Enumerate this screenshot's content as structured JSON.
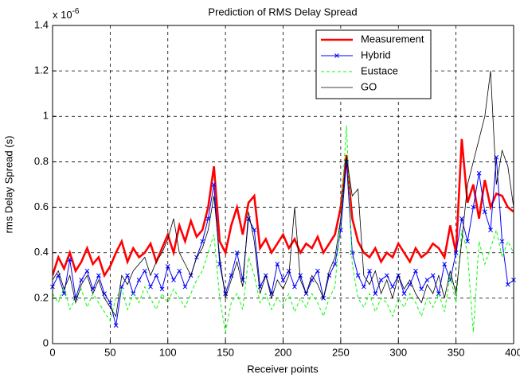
{
  "chart_data": {
    "type": "line",
    "title": "Prediction of RMS Delay Spread",
    "x_label": "Receiver points",
    "y_label": "rms Delay Spread (s)",
    "multiplier": {
      "base": "x 10",
      "exponent": "-6"
    },
    "xlim": [
      0,
      400
    ],
    "xticks": [
      0,
      50,
      100,
      150,
      200,
      250,
      300,
      350,
      400
    ],
    "ylim": [
      0,
      1.4
    ],
    "yticks": [
      0,
      0.2,
      0.4,
      0.6,
      0.8,
      1,
      1.2,
      1.4
    ],
    "grid": true,
    "legend_position": "upper right",
    "x": [
      0,
      5,
      10,
      15,
      20,
      25,
      30,
      35,
      40,
      45,
      50,
      55,
      60,
      65,
      70,
      75,
      80,
      85,
      90,
      95,
      100,
      105,
      110,
      115,
      120,
      125,
      130,
      135,
      140,
      145,
      150,
      155,
      160,
      165,
      170,
      175,
      180,
      185,
      190,
      195,
      200,
      205,
      210,
      215,
      220,
      225,
      230,
      235,
      240,
      245,
      250,
      255,
      260,
      265,
      270,
      275,
      280,
      285,
      290,
      295,
      300,
      305,
      310,
      315,
      320,
      325,
      330,
      335,
      340,
      345,
      350,
      355,
      360,
      365,
      370,
      375,
      380,
      385,
      390,
      395,
      400
    ],
    "series": [
      {
        "name": "Measurement",
        "color": "#ff0000",
        "values": [
          0.3,
          0.38,
          0.33,
          0.4,
          0.32,
          0.36,
          0.42,
          0.35,
          0.38,
          0.3,
          0.34,
          0.4,
          0.45,
          0.36,
          0.42,
          0.38,
          0.4,
          0.44,
          0.36,
          0.42,
          0.48,
          0.4,
          0.52,
          0.45,
          0.54,
          0.47,
          0.5,
          0.6,
          0.78,
          0.45,
          0.4,
          0.52,
          0.6,
          0.48,
          0.62,
          0.65,
          0.42,
          0.46,
          0.4,
          0.44,
          0.48,
          0.42,
          0.46,
          0.4,
          0.44,
          0.42,
          0.47,
          0.4,
          0.44,
          0.48,
          0.6,
          0.83,
          0.55,
          0.45,
          0.4,
          0.38,
          0.42,
          0.36,
          0.4,
          0.38,
          0.44,
          0.4,
          0.36,
          0.42,
          0.38,
          0.4,
          0.44,
          0.42,
          0.38,
          0.52,
          0.4,
          0.9,
          0.62,
          0.7,
          0.55,
          0.72,
          0.6,
          0.66,
          0.65,
          0.6,
          0.58
        ]
      },
      {
        "name": "Hybrid",
        "color": "#0000ff",
        "values": [
          0.25,
          0.3,
          0.22,
          0.37,
          0.2,
          0.28,
          0.32,
          0.24,
          0.3,
          0.22,
          0.18,
          0.08,
          0.25,
          0.3,
          0.22,
          0.28,
          0.32,
          0.25,
          0.3,
          0.24,
          0.34,
          0.28,
          0.32,
          0.25,
          0.3,
          0.38,
          0.45,
          0.55,
          0.7,
          0.35,
          0.22,
          0.3,
          0.4,
          0.28,
          0.55,
          0.5,
          0.25,
          0.3,
          0.22,
          0.35,
          0.28,
          0.32,
          0.25,
          0.3,
          0.22,
          0.28,
          0.32,
          0.2,
          0.3,
          0.35,
          0.5,
          0.8,
          0.4,
          0.3,
          0.25,
          0.32,
          0.22,
          0.28,
          0.3,
          0.25,
          0.3,
          0.22,
          0.26,
          0.32,
          0.24,
          0.28,
          0.3,
          0.22,
          0.35,
          0.28,
          0.4,
          0.55,
          0.45,
          0.6,
          0.75,
          0.58,
          0.5,
          0.82,
          0.45,
          0.26,
          0.28
        ]
      },
      {
        "name": "Eustace",
        "color": "#00ff00",
        "values": [
          0.22,
          0.18,
          0.25,
          0.15,
          0.2,
          0.24,
          0.16,
          0.22,
          0.18,
          0.14,
          0.1,
          0.2,
          0.24,
          0.15,
          0.22,
          0.18,
          0.25,
          0.2,
          0.15,
          0.22,
          0.18,
          0.24,
          0.2,
          0.16,
          0.22,
          0.28,
          0.32,
          0.4,
          0.48,
          0.2,
          0.05,
          0.18,
          0.22,
          0.15,
          0.38,
          0.3,
          0.18,
          0.22,
          0.15,
          0.2,
          0.17,
          0.22,
          0.14,
          0.2,
          0.16,
          0.22,
          0.18,
          0.12,
          0.2,
          0.25,
          0.55,
          0.96,
          0.35,
          0.2,
          0.16,
          0.22,
          0.14,
          0.2,
          0.18,
          0.12,
          0.2,
          0.16,
          0.22,
          0.18,
          0.12,
          0.2,
          0.16,
          0.22,
          0.14,
          0.3,
          0.18,
          0.5,
          0.4,
          0.05,
          0.45,
          0.35,
          0.42,
          0.5,
          0.38,
          0.45,
          0.4
        ]
      },
      {
        "name": "GO",
        "color": "#000000",
        "values": [
          0.28,
          0.32,
          0.24,
          0.3,
          0.18,
          0.26,
          0.3,
          0.22,
          0.28,
          0.2,
          0.16,
          0.12,
          0.3,
          0.26,
          0.32,
          0.35,
          0.38,
          0.3,
          0.36,
          0.4,
          0.46,
          0.55,
          0.4,
          0.35,
          0.3,
          0.38,
          0.42,
          0.5,
          0.65,
          0.38,
          0.2,
          0.28,
          0.36,
          0.25,
          0.58,
          0.45,
          0.22,
          0.3,
          0.2,
          0.28,
          0.24,
          0.3,
          0.6,
          0.28,
          0.22,
          0.3,
          0.26,
          0.2,
          0.32,
          0.38,
          0.55,
          0.82,
          0.65,
          0.68,
          0.3,
          0.26,
          0.32,
          0.22,
          0.28,
          0.2,
          0.3,
          0.24,
          0.28,
          0.22,
          0.18,
          0.26,
          0.22,
          0.3,
          0.2,
          0.32,
          0.22,
          0.45,
          0.7,
          0.8,
          0.9,
          1.0,
          1.2,
          0.7,
          0.85,
          0.78,
          0.6
        ]
      }
    ]
  }
}
